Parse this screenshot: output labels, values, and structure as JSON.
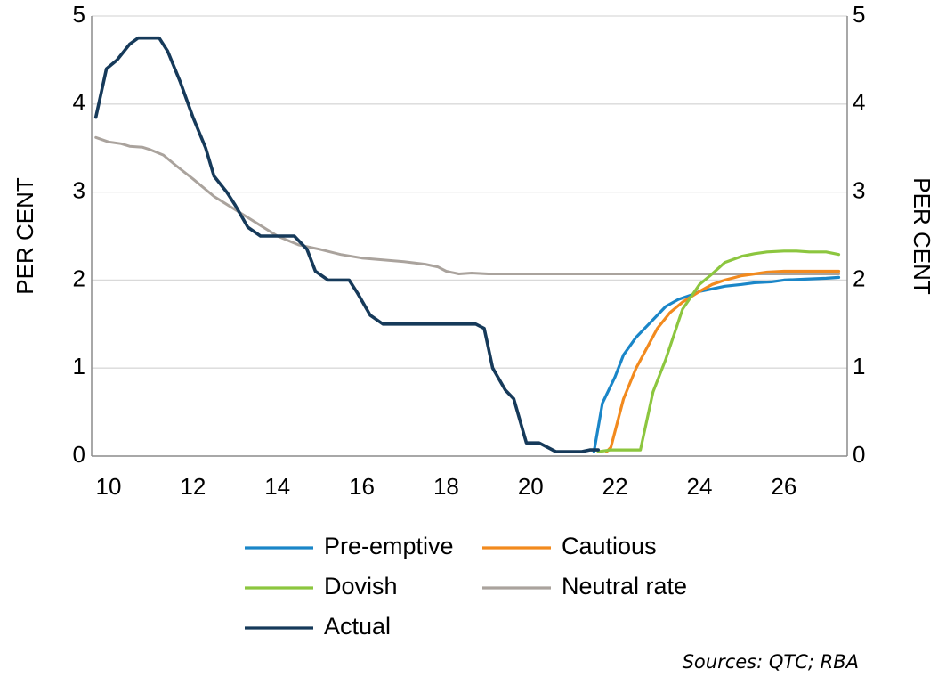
{
  "chart_data": {
    "type": "line",
    "ylabel": "PER CENT",
    "ylabel_right": "PER CENT",
    "xlim": [
      9.6,
      27.5
    ],
    "ylim": [
      0,
      5
    ],
    "x_ticks": [
      "10",
      "12",
      "14",
      "16",
      "18",
      "20",
      "22",
      "24",
      "26"
    ],
    "y_ticks": [
      "0",
      "1",
      "2",
      "3",
      "4",
      "5"
    ],
    "grid": "horizontal",
    "legend_placement": "bottom",
    "source": "Sources: QTC; RBA",
    "colors": {
      "pre_emptive": "#1a86c8",
      "cautious": "#f28a1e",
      "dovish": "#8cc63f",
      "neutral": "#aaa39d",
      "actual": "#163a5a",
      "grid": "#d9d9d9",
      "axis": "#8c8c8c"
    },
    "series": [
      {
        "name": "Pre-emptive",
        "key": "pre_emptive",
        "x": [
          21.5,
          21.7,
          22.0,
          22.2,
          22.5,
          22.8,
          23.0,
          23.2,
          23.5,
          23.8,
          24.0,
          24.3,
          24.6,
          25.0,
          25.3,
          25.7,
          26.0,
          26.5,
          27.0,
          27.3
        ],
        "y": [
          0.05,
          0.6,
          0.9,
          1.15,
          1.35,
          1.5,
          1.6,
          1.7,
          1.78,
          1.83,
          1.87,
          1.9,
          1.93,
          1.95,
          1.97,
          1.98,
          2.0,
          2.01,
          2.02,
          2.03
        ]
      },
      {
        "name": "Cautious",
        "key": "cautious",
        "x": [
          21.8,
          21.9,
          22.2,
          22.5,
          22.8,
          23.0,
          23.3,
          23.6,
          24.0,
          24.3,
          24.6,
          25.0,
          25.3,
          25.6,
          26.0,
          26.5,
          27.3
        ],
        "y": [
          0.05,
          0.1,
          0.65,
          1.0,
          1.27,
          1.45,
          1.63,
          1.75,
          1.87,
          1.95,
          2.0,
          2.05,
          2.07,
          2.09,
          2.1,
          2.1,
          2.1
        ]
      },
      {
        "name": "Dovish",
        "key": "dovish",
        "x": [
          21.6,
          21.9,
          22.2,
          22.6,
          22.9,
          23.2,
          23.6,
          24.0,
          24.3,
          24.6,
          25.0,
          25.3,
          25.6,
          26.0,
          26.3,
          26.6,
          27.0,
          27.3
        ],
        "y": [
          0.05,
          0.07,
          0.07,
          0.07,
          0.73,
          1.1,
          1.67,
          1.95,
          2.07,
          2.2,
          2.27,
          2.3,
          2.32,
          2.33,
          2.33,
          2.32,
          2.32,
          2.29
        ]
      },
      {
        "name": "Neutral rate",
        "key": "neutral",
        "x": [
          9.7,
          10.0,
          10.3,
          10.5,
          10.8,
          11.0,
          11.3,
          11.6,
          12.0,
          12.5,
          13.0,
          13.5,
          14.0,
          14.5,
          15.0,
          15.5,
          16.0,
          16.5,
          17.0,
          17.5,
          17.8,
          18.0,
          18.3,
          18.6,
          19.0,
          19.5,
          20.0,
          21.0,
          22.0,
          23.0,
          24.0,
          25.0,
          26.0,
          27.3
        ],
        "y": [
          3.62,
          3.57,
          3.55,
          3.52,
          3.51,
          3.48,
          3.42,
          3.3,
          3.15,
          2.95,
          2.8,
          2.65,
          2.5,
          2.4,
          2.35,
          2.29,
          2.25,
          2.23,
          2.21,
          2.18,
          2.15,
          2.1,
          2.07,
          2.08,
          2.07,
          2.07,
          2.07,
          2.07,
          2.07,
          2.07,
          2.07,
          2.07,
          2.07,
          2.07
        ]
      },
      {
        "name": "Actual",
        "key": "actual",
        "x": [
          9.7,
          9.95,
          10.2,
          10.5,
          10.7,
          11.0,
          11.2,
          11.4,
          11.7,
          12.0,
          12.3,
          12.5,
          12.8,
          13.0,
          13.3,
          13.6,
          14.0,
          14.4,
          14.7,
          14.9,
          15.2,
          15.5,
          15.7,
          15.9,
          16.2,
          16.5,
          17.0,
          17.5,
          18.0,
          18.5,
          18.7,
          18.9,
          19.1,
          19.4,
          19.6,
          19.9,
          20.2,
          20.4,
          20.6,
          20.8,
          21.0,
          21.2,
          21.4,
          21.6
        ],
        "y": [
          3.85,
          4.4,
          4.5,
          4.68,
          4.75,
          4.75,
          4.75,
          4.6,
          4.25,
          3.85,
          3.5,
          3.18,
          3.0,
          2.85,
          2.6,
          2.5,
          2.5,
          2.5,
          2.35,
          2.1,
          2.0,
          2.0,
          2.0,
          1.85,
          1.6,
          1.5,
          1.5,
          1.5,
          1.5,
          1.5,
          1.5,
          1.45,
          1.0,
          0.75,
          0.65,
          0.15,
          0.15,
          0.1,
          0.05,
          0.05,
          0.05,
          0.05,
          0.07,
          0.07
        ]
      }
    ],
    "legend": [
      {
        "label": "Pre-emptive",
        "key": "pre_emptive"
      },
      {
        "label": "Cautious",
        "key": "cautious"
      },
      {
        "label": "Dovish",
        "key": "dovish"
      },
      {
        "label": "Neutral rate",
        "key": "neutral"
      },
      {
        "label": "Actual",
        "key": "actual"
      }
    ]
  }
}
